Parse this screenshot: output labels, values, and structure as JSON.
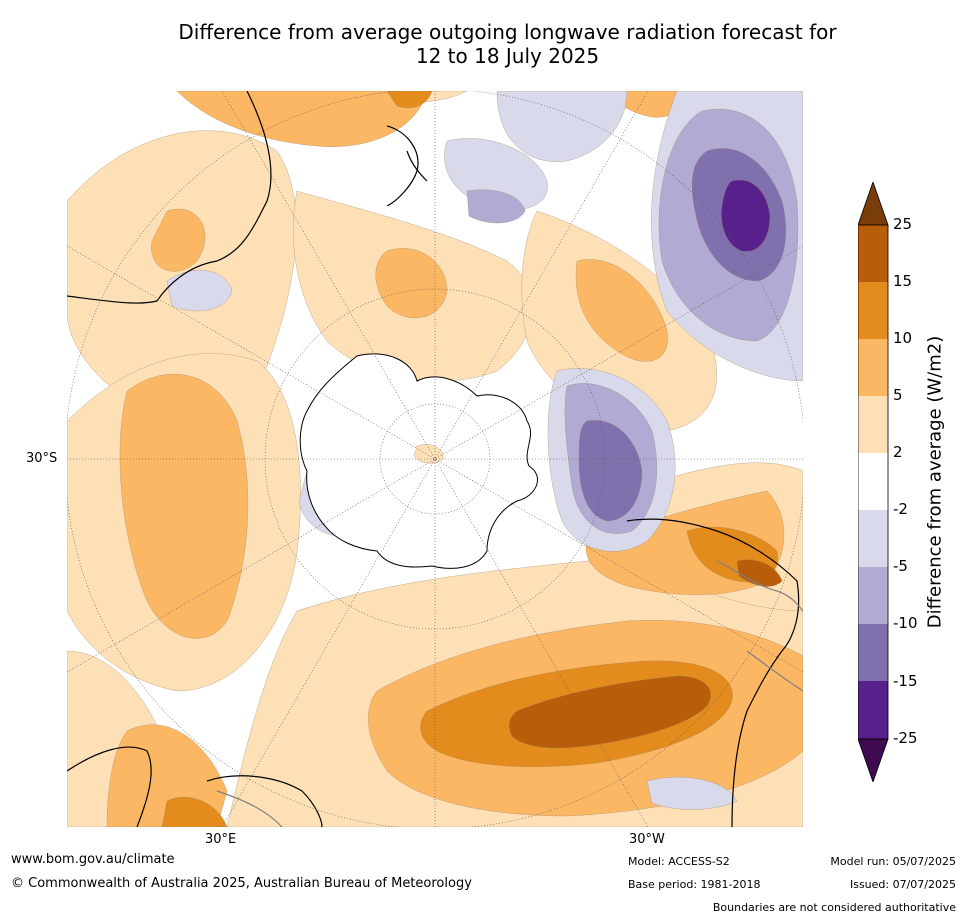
{
  "title_line1": "Difference from average outgoing longwave radiation forecast for",
  "title_line2": "12 to 18 July 2025",
  "map": {
    "lat_label": "30°S",
    "lon_labels": [
      "30°E",
      "30°W"
    ],
    "projection": "south polar stereographic",
    "palette": {
      "lt25": "#3f0a52",
      "m25_m15": "#58208a",
      "m15_m10": "#8070ad",
      "m10_m5": "#b1aad3",
      "m5_m2": "#d9d9ec",
      "neutral": "#ffffff",
      "p2_p5": "#fde0b6",
      "p5_p10": "#fbb764",
      "p10_p15": "#e38b1d",
      "p15_p25": "#b85e0a",
      "gt25": "#7a3c08",
      "coastline": "#000000",
      "border": "#808080",
      "grid": "#555555"
    }
  },
  "colorbar": {
    "label": "Difference from average (W/m2)",
    "ticks": [
      "25",
      "15",
      "10",
      "5",
      "2",
      "-2",
      "-5",
      "-10",
      "-15",
      "-25"
    ]
  },
  "footer": {
    "url": "www.bom.gov.au/climate",
    "copyright": "© Commonwealth of Australia 2025, Australian Bureau of Meteorology",
    "model": "Model: ACCESS-S2",
    "base_period": "Base period: 1981-2018",
    "model_run": "Model run: 05/07/2025",
    "issued": "Issued: 07/07/2025",
    "disclaimer": "Boundaries are not considered authoritative"
  }
}
